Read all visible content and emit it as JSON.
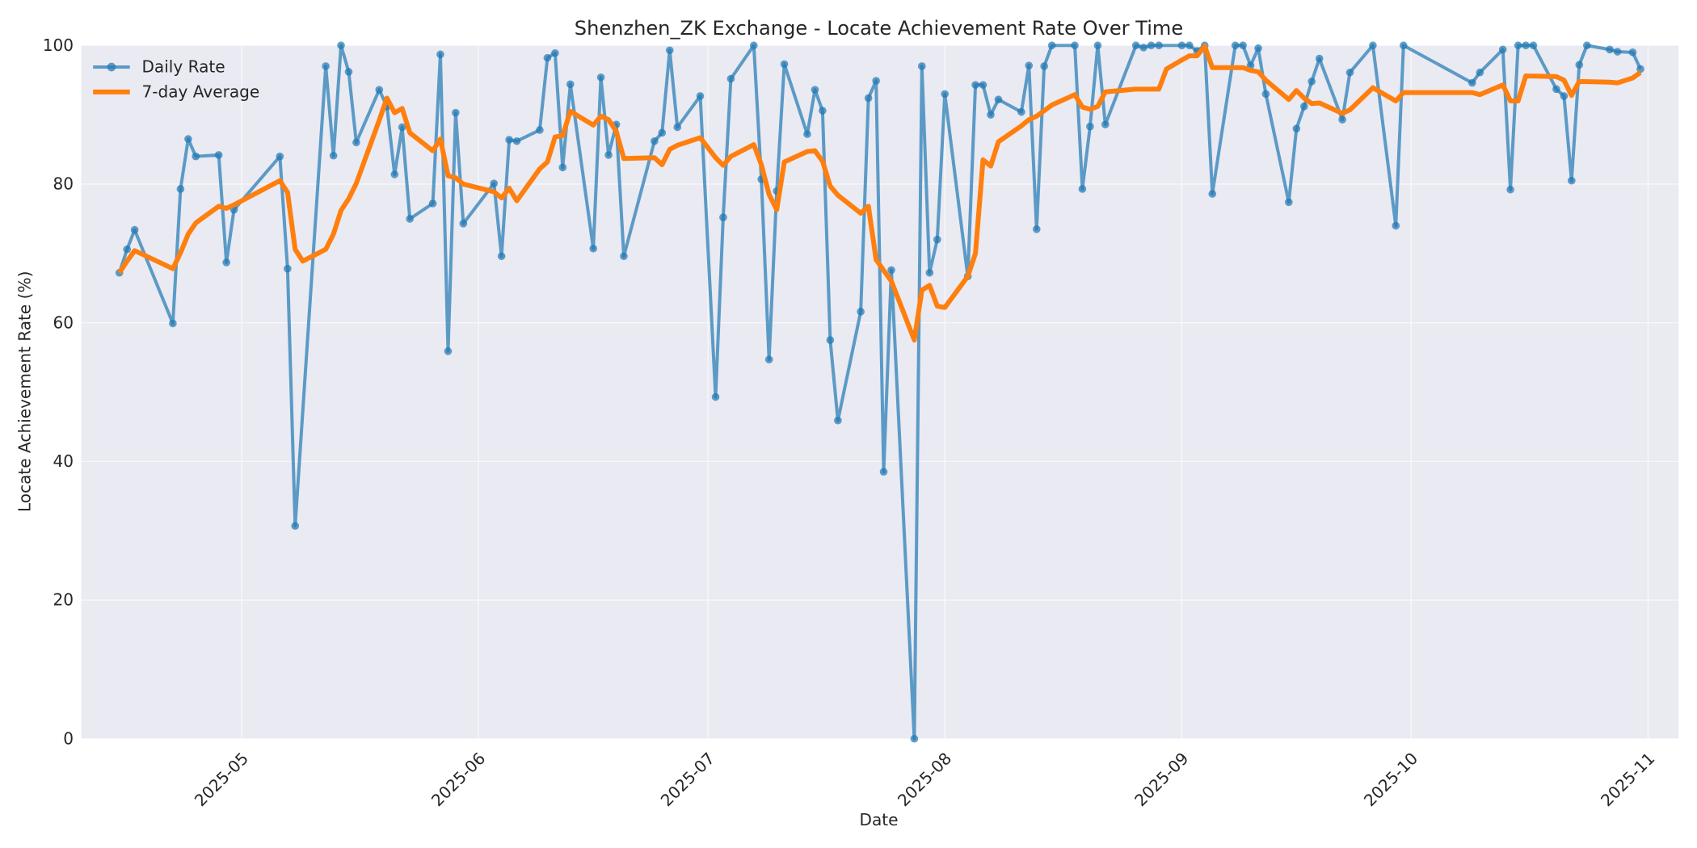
{
  "chart_data": {
    "type": "line",
    "title": "Shenzhen_ZK Exchange - Locate Achievement Rate Over Time",
    "xlabel": "Date",
    "ylabel": "Locate Achievement Rate (%)",
    "ylim": [
      0,
      100
    ],
    "xlim": [
      "2025-04-10",
      "2025-11-05"
    ],
    "yticks": [
      0,
      20,
      40,
      60,
      80,
      100
    ],
    "xticks": [
      "2025-05",
      "2025-06",
      "2025-07",
      "2025-08",
      "2025-09",
      "2025-10",
      "2025-11"
    ],
    "grid": true,
    "legend_position": "upper left",
    "background": "#eaeaf2",
    "series": [
      {
        "name": "Daily Rate",
        "color": "#1f77b4",
        "marker": "circle",
        "points": [
          [
            "2025-04-15",
            67.2
          ],
          [
            "2025-04-16",
            70.6
          ],
          [
            "2025-04-17",
            73.4
          ],
          [
            "2025-04-22",
            59.9
          ],
          [
            "2025-04-23",
            79.3
          ],
          [
            "2025-04-24",
            86.5
          ],
          [
            "2025-04-25",
            84.0
          ],
          [
            "2025-04-28",
            84.2
          ],
          [
            "2025-04-29",
            68.7
          ],
          [
            "2025-04-30",
            76.3
          ],
          [
            "2025-05-06",
            84.0
          ],
          [
            "2025-05-07",
            67.8
          ],
          [
            "2025-05-08",
            30.7
          ],
          [
            "2025-05-12",
            97.0
          ],
          [
            "2025-05-13",
            84.1
          ],
          [
            "2025-05-14",
            100.0
          ],
          [
            "2025-05-15",
            96.2
          ],
          [
            "2025-05-16",
            86.0
          ],
          [
            "2025-05-19",
            93.6
          ],
          [
            "2025-05-20",
            91.2
          ],
          [
            "2025-05-21",
            81.4
          ],
          [
            "2025-05-22",
            88.2
          ],
          [
            "2025-05-23",
            75.0
          ],
          [
            "2025-05-26",
            77.2
          ],
          [
            "2025-05-27",
            98.7
          ],
          [
            "2025-05-28",
            55.9
          ],
          [
            "2025-05-29",
            90.3
          ],
          [
            "2025-05-30",
            74.3
          ],
          [
            "2025-06-03",
            80.1
          ],
          [
            "2025-06-04",
            69.6
          ],
          [
            "2025-06-05",
            86.4
          ],
          [
            "2025-06-06",
            86.2
          ],
          [
            "2025-06-09",
            87.8
          ],
          [
            "2025-06-10",
            98.2
          ],
          [
            "2025-06-11",
            98.9
          ],
          [
            "2025-06-12",
            82.4
          ],
          [
            "2025-06-13",
            94.4
          ],
          [
            "2025-06-16",
            70.7
          ],
          [
            "2025-06-17",
            95.4
          ],
          [
            "2025-06-18",
            84.2
          ],
          [
            "2025-06-19",
            88.6
          ],
          [
            "2025-06-20",
            69.6
          ],
          [
            "2025-06-24",
            86.2
          ],
          [
            "2025-06-25",
            87.4
          ],
          [
            "2025-06-26",
            99.3
          ],
          [
            "2025-06-27",
            88.2
          ],
          [
            "2025-06-30",
            92.7
          ],
          [
            "2025-07-02",
            49.3
          ],
          [
            "2025-07-03",
            75.2
          ],
          [
            "2025-07-04",
            95.2
          ],
          [
            "2025-07-07",
            100.0
          ],
          [
            "2025-07-08",
            80.7
          ],
          [
            "2025-07-09",
            54.7
          ],
          [
            "2025-07-10",
            79.0
          ],
          [
            "2025-07-11",
            97.3
          ],
          [
            "2025-07-14",
            87.2
          ],
          [
            "2025-07-15",
            93.6
          ],
          [
            "2025-07-16",
            90.6
          ],
          [
            "2025-07-17",
            57.5
          ],
          [
            "2025-07-18",
            45.9
          ],
          [
            "2025-07-21",
            61.6
          ],
          [
            "2025-07-22",
            92.4
          ],
          [
            "2025-07-23",
            94.9
          ],
          [
            "2025-07-24",
            38.5
          ],
          [
            "2025-07-25",
            67.6
          ],
          [
            "2025-07-28",
            0.0
          ],
          [
            "2025-07-29",
            97.0
          ],
          [
            "2025-07-30",
            67.2
          ],
          [
            "2025-07-31",
            72.0
          ],
          [
            "2025-08-01",
            93.0
          ],
          [
            "2025-08-04",
            66.7
          ],
          [
            "2025-08-05",
            94.3
          ],
          [
            "2025-08-06",
            94.3
          ],
          [
            "2025-08-07",
            90.0
          ],
          [
            "2025-08-08",
            92.2
          ],
          [
            "2025-08-11",
            90.4
          ],
          [
            "2025-08-12",
            97.1
          ],
          [
            "2025-08-13",
            73.5
          ],
          [
            "2025-08-14",
            97.0
          ],
          [
            "2025-08-15",
            100.0
          ],
          [
            "2025-08-18",
            100.0
          ],
          [
            "2025-08-19",
            79.3
          ],
          [
            "2025-08-20",
            88.3
          ],
          [
            "2025-08-21",
            100.0
          ],
          [
            "2025-08-22",
            88.6
          ],
          [
            "2025-08-26",
            100.0
          ],
          [
            "2025-08-27",
            99.7
          ],
          [
            "2025-08-28",
            100.0
          ],
          [
            "2025-08-29",
            100.0
          ],
          [
            "2025-09-01",
            100.0
          ],
          [
            "2025-09-02",
            100.0
          ],
          [
            "2025-09-03",
            99.2
          ],
          [
            "2025-09-04",
            100.0
          ],
          [
            "2025-09-05",
            78.6
          ],
          [
            "2025-09-08",
            100.0
          ],
          [
            "2025-09-09",
            100.0
          ],
          [
            "2025-09-10",
            97.1
          ],
          [
            "2025-09-11",
            99.6
          ],
          [
            "2025-09-12",
            93.0
          ],
          [
            "2025-09-15",
            77.4
          ],
          [
            "2025-09-16",
            88.0
          ],
          [
            "2025-09-17",
            91.2
          ],
          [
            "2025-09-18",
            94.8
          ],
          [
            "2025-09-19",
            98.1
          ],
          [
            "2025-09-22",
            89.3
          ],
          [
            "2025-09-23",
            96.1
          ],
          [
            "2025-09-26",
            100.0
          ],
          [
            "2025-09-29",
            74.0
          ],
          [
            "2025-09-30",
            100.0
          ],
          [
            "2025-10-09",
            94.6
          ],
          [
            "2025-10-10",
            96.1
          ],
          [
            "2025-10-13",
            99.4
          ],
          [
            "2025-10-14",
            79.2
          ],
          [
            "2025-10-15",
            100.0
          ],
          [
            "2025-10-16",
            100.0
          ],
          [
            "2025-10-17",
            100.0
          ],
          [
            "2025-10-20",
            93.7
          ],
          [
            "2025-10-21",
            92.7
          ],
          [
            "2025-10-22",
            80.5
          ],
          [
            "2025-10-23",
            97.2
          ],
          [
            "2025-10-24",
            100.0
          ],
          [
            "2025-10-27",
            99.4
          ],
          [
            "2025-10-28",
            99.1
          ],
          [
            "2025-10-30",
            99.0
          ],
          [
            "2025-10-31",
            96.6
          ]
        ]
      },
      {
        "name": "7-day Average",
        "color": "#ff7f0e",
        "marker": "none",
        "points": [
          [
            "2025-04-15",
            67.2
          ],
          [
            "2025-04-16",
            68.9
          ],
          [
            "2025-04-17",
            70.4
          ],
          [
            "2025-04-22",
            67.8
          ],
          [
            "2025-04-23",
            70.1
          ],
          [
            "2025-04-24",
            72.8
          ],
          [
            "2025-04-25",
            74.4
          ],
          [
            "2025-04-28",
            76.8
          ],
          [
            "2025-04-29",
            76.5
          ],
          [
            "2025-04-30",
            77.0
          ],
          [
            "2025-05-06",
            80.5
          ],
          [
            "2025-05-07",
            78.8
          ],
          [
            "2025-05-08",
            70.6
          ],
          [
            "2025-05-09",
            68.9
          ],
          [
            "2025-05-12",
            70.6
          ],
          [
            "2025-05-13",
            72.8
          ],
          [
            "2025-05-14",
            76.2
          ],
          [
            "2025-05-15",
            77.9
          ],
          [
            "2025-05-16",
            80.1
          ],
          [
            "2025-05-19",
            89.2
          ],
          [
            "2025-05-20",
            92.4
          ],
          [
            "2025-05-21",
            90.3
          ],
          [
            "2025-05-22",
            90.9
          ],
          [
            "2025-05-23",
            87.4
          ],
          [
            "2025-05-26",
            84.8
          ],
          [
            "2025-05-27",
            86.5
          ],
          [
            "2025-05-28",
            81.2
          ],
          [
            "2025-05-29",
            80.9
          ],
          [
            "2025-05-30",
            80.0
          ],
          [
            "2025-06-03",
            78.9
          ],
          [
            "2025-06-04",
            78.0
          ],
          [
            "2025-06-05",
            79.4
          ],
          [
            "2025-06-06",
            77.6
          ],
          [
            "2025-06-09",
            82.2
          ],
          [
            "2025-06-10",
            83.2
          ],
          [
            "2025-06-11",
            86.8
          ],
          [
            "2025-06-12",
            87.0
          ],
          [
            "2025-06-13",
            90.5
          ],
          [
            "2025-06-16",
            88.5
          ],
          [
            "2025-06-17",
            89.8
          ],
          [
            "2025-06-18",
            89.3
          ],
          [
            "2025-06-19",
            87.6
          ],
          [
            "2025-06-20",
            83.7
          ],
          [
            "2025-06-24",
            83.8
          ],
          [
            "2025-06-25",
            82.8
          ],
          [
            "2025-06-26",
            85.0
          ],
          [
            "2025-06-27",
            85.6
          ],
          [
            "2025-06-30",
            86.7
          ],
          [
            "2025-07-02",
            83.8
          ],
          [
            "2025-07-03",
            82.7
          ],
          [
            "2025-07-04",
            84.0
          ],
          [
            "2025-07-07",
            85.7
          ],
          [
            "2025-07-08",
            82.8
          ],
          [
            "2025-07-09",
            78.5
          ],
          [
            "2025-07-10",
            76.3
          ],
          [
            "2025-07-11",
            83.2
          ],
          [
            "2025-07-14",
            84.7
          ],
          [
            "2025-07-15",
            84.8
          ],
          [
            "2025-07-16",
            83.3
          ],
          [
            "2025-07-17",
            79.7
          ],
          [
            "2025-07-18",
            78.4
          ],
          [
            "2025-07-21",
            75.8
          ],
          [
            "2025-07-22",
            76.8
          ],
          [
            "2025-07-23",
            69.1
          ],
          [
            "2025-07-25",
            66.0
          ],
          [
            "2025-07-28",
            57.5
          ],
          [
            "2025-07-29",
            64.7
          ],
          [
            "2025-07-30",
            65.4
          ],
          [
            "2025-07-31",
            62.4
          ],
          [
            "2025-08-01",
            62.2
          ],
          [
            "2025-08-04",
            66.7
          ],
          [
            "2025-08-05",
            70.0
          ],
          [
            "2025-08-06",
            83.5
          ],
          [
            "2025-08-07",
            82.6
          ],
          [
            "2025-08-08",
            86.1
          ],
          [
            "2025-08-11",
            88.4
          ],
          [
            "2025-08-12",
            89.3
          ],
          [
            "2025-08-13",
            89.8
          ],
          [
            "2025-08-14",
            90.6
          ],
          [
            "2025-08-15",
            91.4
          ],
          [
            "2025-08-18",
            92.9
          ],
          [
            "2025-08-19",
            91.1
          ],
          [
            "2025-08-20",
            90.8
          ],
          [
            "2025-08-21",
            91.2
          ],
          [
            "2025-08-22",
            93.3
          ],
          [
            "2025-08-26",
            93.7
          ],
          [
            "2025-08-29",
            93.7
          ],
          [
            "2025-08-30",
            96.6
          ],
          [
            "2025-09-01",
            97.9
          ],
          [
            "2025-09-02",
            98.5
          ],
          [
            "2025-09-03",
            98.5
          ],
          [
            "2025-09-04",
            99.9
          ],
          [
            "2025-09-05",
            96.8
          ],
          [
            "2025-09-08",
            96.8
          ],
          [
            "2025-09-09",
            96.8
          ],
          [
            "2025-09-10",
            96.4
          ],
          [
            "2025-09-11",
            96.2
          ],
          [
            "2025-09-12",
            95.0
          ],
          [
            "2025-09-15",
            92.2
          ],
          [
            "2025-09-16",
            93.5
          ],
          [
            "2025-09-17",
            92.4
          ],
          [
            "2025-09-18",
            91.6
          ],
          [
            "2025-09-19",
            91.7
          ],
          [
            "2025-09-22",
            90.2
          ],
          [
            "2025-09-23",
            90.7
          ],
          [
            "2025-09-26",
            93.9
          ],
          [
            "2025-09-29",
            92.0
          ],
          [
            "2025-09-30",
            93.2
          ],
          [
            "2025-10-09",
            93.2
          ],
          [
            "2025-10-10",
            92.9
          ],
          [
            "2025-10-13",
            94.3
          ],
          [
            "2025-10-14",
            92.0
          ],
          [
            "2025-10-15",
            92.0
          ],
          [
            "2025-10-16",
            95.6
          ],
          [
            "2025-10-20",
            95.5
          ],
          [
            "2025-10-21",
            95.0
          ],
          [
            "2025-10-22",
            92.8
          ],
          [
            "2025-10-23",
            94.8
          ],
          [
            "2025-10-27",
            94.7
          ],
          [
            "2025-10-28",
            94.6
          ],
          [
            "2025-10-30",
            95.3
          ],
          [
            "2025-10-31",
            96.1
          ]
        ]
      }
    ]
  },
  "legend": {
    "daily_label": "Daily Rate",
    "avg_label": "7-day Average"
  }
}
